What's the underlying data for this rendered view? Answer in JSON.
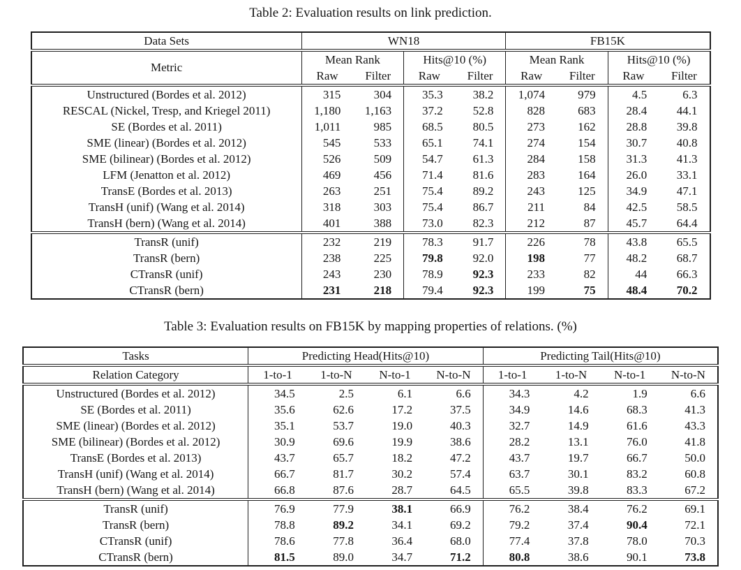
{
  "page": {
    "colors": {
      "background": "#ffffff",
      "text": "#151515",
      "table_border": "#1e1e1e"
    }
  },
  "table2": {
    "caption": "Table 2: Evaluation results on link prediction.",
    "header": {
      "datasets_label": "Data Sets",
      "metric_label": "Metric",
      "group1": "WN18",
      "group2": "FB15K",
      "subgroups": [
        "Mean Rank",
        "Hits@10 (%)",
        "Mean Rank",
        "Hits@10 (%)"
      ],
      "sub_cols": [
        "Raw",
        "Filter",
        "Raw",
        "Filter",
        "Raw",
        "Filter",
        "Raw",
        "Filter"
      ]
    },
    "rows": [
      {
        "label": "Unstructured (Bordes et al. 2012)",
        "values": [
          "315",
          "304",
          "35.3",
          "38.2",
          "1,074",
          "979",
          "4.5",
          "6.3"
        ],
        "bold": []
      },
      {
        "label": "RESCAL (Nickel, Tresp, and Kriegel 2011)",
        "values": [
          "1,180",
          "1,163",
          "37.2",
          "52.8",
          "828",
          "683",
          "28.4",
          "44.1"
        ],
        "bold": []
      },
      {
        "label": "SE (Bordes et al. 2011)",
        "values": [
          "1,011",
          "985",
          "68.5",
          "80.5",
          "273",
          "162",
          "28.8",
          "39.8"
        ],
        "bold": []
      },
      {
        "label": "SME (linear) (Bordes et al. 2012)",
        "values": [
          "545",
          "533",
          "65.1",
          "74.1",
          "274",
          "154",
          "30.7",
          "40.8"
        ],
        "bold": []
      },
      {
        "label": "SME (bilinear) (Bordes et al. 2012)",
        "values": [
          "526",
          "509",
          "54.7",
          "61.3",
          "284",
          "158",
          "31.3",
          "41.3"
        ],
        "bold": []
      },
      {
        "label": "LFM (Jenatton et al. 2012)",
        "values": [
          "469",
          "456",
          "71.4",
          "81.6",
          "283",
          "164",
          "26.0",
          "33.1"
        ],
        "bold": []
      },
      {
        "label": "TransE (Bordes et al. 2013)",
        "values": [
          "263",
          "251",
          "75.4",
          "89.2",
          "243",
          "125",
          "34.9",
          "47.1"
        ],
        "bold": []
      },
      {
        "label": "TransH (unif) (Wang et al. 2014)",
        "values": [
          "318",
          "303",
          "75.4",
          "86.7",
          "211",
          "84",
          "42.5",
          "58.5"
        ],
        "bold": []
      },
      {
        "label": "TransH (bern) (Wang et al. 2014)",
        "values": [
          "401",
          "388",
          "73.0",
          "82.3",
          "212",
          "87",
          "45.7",
          "64.4"
        ],
        "bold": []
      }
    ],
    "rows_proposed": [
      {
        "label": "TransR (unif)",
        "values": [
          "232",
          "219",
          "78.3",
          "91.7",
          "226",
          "78",
          "43.8",
          "65.5"
        ],
        "bold": []
      },
      {
        "label": "TransR (bern)",
        "values": [
          "238",
          "225",
          "79.8",
          "92.0",
          "198",
          "77",
          "48.2",
          "68.7"
        ],
        "bold": [
          2,
          4
        ]
      },
      {
        "label": "CTransR (unif)",
        "values": [
          "243",
          "230",
          "78.9",
          "92.3",
          "233",
          "82",
          "44",
          "66.3"
        ],
        "bold": [
          3
        ]
      },
      {
        "label": "CTransR (bern)",
        "values": [
          "231",
          "218",
          "79.4",
          "92.3",
          "199",
          "75",
          "48.4",
          "70.2"
        ],
        "bold": [
          0,
          1,
          3,
          5,
          6,
          7
        ]
      }
    ]
  },
  "table3": {
    "caption": "Table 3: Evaluation results on FB15K by mapping properties of relations. (%)",
    "header": {
      "tasks_label": "Tasks",
      "category_label": "Relation Category",
      "group1": "Predicting Head(Hits@10)",
      "group2": "Predicting Tail(Hits@10)",
      "sub_cols": [
        "1-to-1",
        "1-to-N",
        "N-to-1",
        "N-to-N",
        "1-to-1",
        "1-to-N",
        "N-to-1",
        "N-to-N"
      ]
    },
    "rows": [
      {
        "label": "Unstructured (Bordes et al. 2012)",
        "values": [
          "34.5",
          "2.5",
          "6.1",
          "6.6",
          "34.3",
          "4.2",
          "1.9",
          "6.6"
        ],
        "bold": []
      },
      {
        "label": "SE (Bordes et al. 2011)",
        "values": [
          "35.6",
          "62.6",
          "17.2",
          "37.5",
          "34.9",
          "14.6",
          "68.3",
          "41.3"
        ],
        "bold": []
      },
      {
        "label": "SME (linear) (Bordes et al. 2012)",
        "values": [
          "35.1",
          "53.7",
          "19.0",
          "40.3",
          "32.7",
          "14.9",
          "61.6",
          "43.3"
        ],
        "bold": []
      },
      {
        "label": "SME (bilinear) (Bordes et al. 2012)",
        "values": [
          "30.9",
          "69.6",
          "19.9",
          "38.6",
          "28.2",
          "13.1",
          "76.0",
          "41.8"
        ],
        "bold": []
      },
      {
        "label": "TransE (Bordes et al. 2013)",
        "values": [
          "43.7",
          "65.7",
          "18.2",
          "47.2",
          "43.7",
          "19.7",
          "66.7",
          "50.0"
        ],
        "bold": []
      },
      {
        "label": "TransH (unif) (Wang et al. 2014)",
        "values": [
          "66.7",
          "81.7",
          "30.2",
          "57.4",
          "63.7",
          "30.1",
          "83.2",
          "60.8"
        ],
        "bold": []
      },
      {
        "label": "TransH (bern) (Wang et al. 2014)",
        "values": [
          "66.8",
          "87.6",
          "28.7",
          "64.5",
          "65.5",
          "39.8",
          "83.3",
          "67.2"
        ],
        "bold": []
      }
    ],
    "rows_proposed": [
      {
        "label": "TransR (unif)",
        "values": [
          "76.9",
          "77.9",
          "38.1",
          "66.9",
          "76.2",
          "38.4",
          "76.2",
          "69.1"
        ],
        "bold": [
          2
        ]
      },
      {
        "label": "TransR (bern)",
        "values": [
          "78.8",
          "89.2",
          "34.1",
          "69.2",
          "79.2",
          "37.4",
          "90.4",
          "72.1"
        ],
        "bold": [
          1,
          6
        ]
      },
      {
        "label": "CTransR (unif)",
        "values": [
          "78.6",
          "77.8",
          "36.4",
          "68.0",
          "77.4",
          "37.8",
          "78.0",
          "70.3"
        ],
        "bold": []
      },
      {
        "label": "CTransR (bern)",
        "values": [
          "81.5",
          "89.0",
          "34.7",
          "71.2",
          "80.8",
          "38.6",
          "90.1",
          "73.8"
        ],
        "bold": [
          0,
          3,
          4,
          7
        ]
      }
    ]
  }
}
